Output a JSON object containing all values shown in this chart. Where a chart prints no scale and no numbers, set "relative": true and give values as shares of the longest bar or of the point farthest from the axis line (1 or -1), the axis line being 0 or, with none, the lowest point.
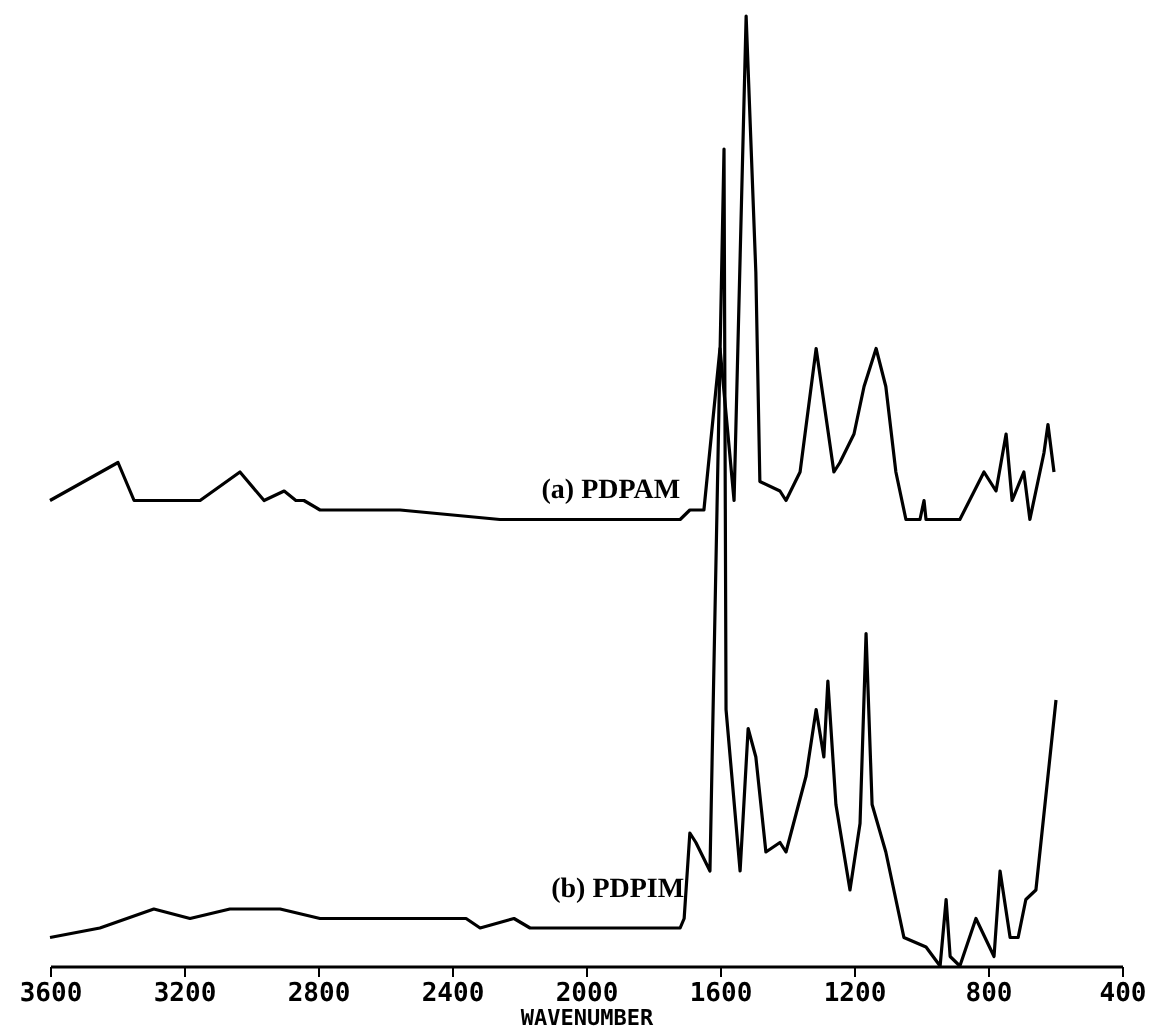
{
  "chart_data": {
    "type": "line",
    "relative": true,
    "xlabel": "WAVENUMBER",
    "xlim": [
      3600,
      400
    ],
    "xticks": [
      3600,
      3200,
      2800,
      2400,
      2000,
      1600,
      1200,
      800,
      400
    ],
    "grid": false,
    "marker": "none",
    "line_style": "solid",
    "series": [
      {
        "name": "(a) PDPAM",
        "color": "#000000",
        "x": [
          3600,
          3397,
          3349,
          3152,
          3033,
          2961,
          2901,
          2866,
          2842,
          2794,
          2555,
          2257,
          1958,
          1719,
          1690,
          1648,
          1600,
          1558,
          1522,
          1493,
          1481,
          1421,
          1403,
          1361,
          1313,
          1260,
          1242,
          1200,
          1170,
          1134,
          1105,
          1075,
          1045,
          1003,
          991,
          985,
          884,
          812,
          776,
          746,
          728,
          693,
          675,
          633,
          621,
          603
        ],
        "values": [
          0.49,
          0.53,
          0.49,
          0.49,
          0.52,
          0.49,
          0.5,
          0.49,
          0.49,
          0.48,
          0.48,
          0.47,
          0.47,
          0.47,
          0.48,
          0.48,
          0.65,
          0.49,
          1.0,
          0.73,
          0.51,
          0.5,
          0.49,
          0.52,
          0.65,
          0.52,
          0.53,
          0.56,
          0.61,
          0.65,
          0.61,
          0.52,
          0.47,
          0.47,
          0.49,
          0.47,
          0.47,
          0.52,
          0.5,
          0.56,
          0.49,
          0.52,
          0.47,
          0.54,
          0.57,
          0.52
        ]
      },
      {
        "name": "(b) PDPIM",
        "color": "#000000",
        "x": [
          3600,
          3451,
          3290,
          3182,
          3063,
          2913,
          2794,
          2555,
          2376,
          2358,
          2316,
          2215,
          2167,
          1958,
          1719,
          1707,
          1690,
          1672,
          1630,
          1588,
          1582,
          1540,
          1516,
          1493,
          1463,
          1421,
          1403,
          1373,
          1343,
          1313,
          1290,
          1278,
          1254,
          1212,
          1182,
          1164,
          1146,
          1105,
          1051,
          985,
          943,
          925,
          913,
          884,
          836,
          782,
          764,
          734,
          710,
          687,
          657,
          597
        ],
        "values": [
          0.03,
          0.04,
          0.06,
          0.05,
          0.06,
          0.06,
          0.05,
          0.05,
          0.05,
          0.05,
          0.04,
          0.05,
          0.04,
          0.04,
          0.04,
          0.05,
          0.14,
          0.13,
          0.1,
          0.86,
          0.27,
          0.1,
          0.25,
          0.22,
          0.12,
          0.13,
          0.12,
          0.16,
          0.2,
          0.27,
          0.22,
          0.3,
          0.17,
          0.08,
          0.15,
          0.35,
          0.17,
          0.12,
          0.03,
          0.02,
          0.0,
          0.07,
          0.01,
          0.0,
          0.05,
          0.01,
          0.1,
          0.03,
          0.03,
          0.07,
          0.08,
          0.28
        ]
      }
    ]
  }
}
